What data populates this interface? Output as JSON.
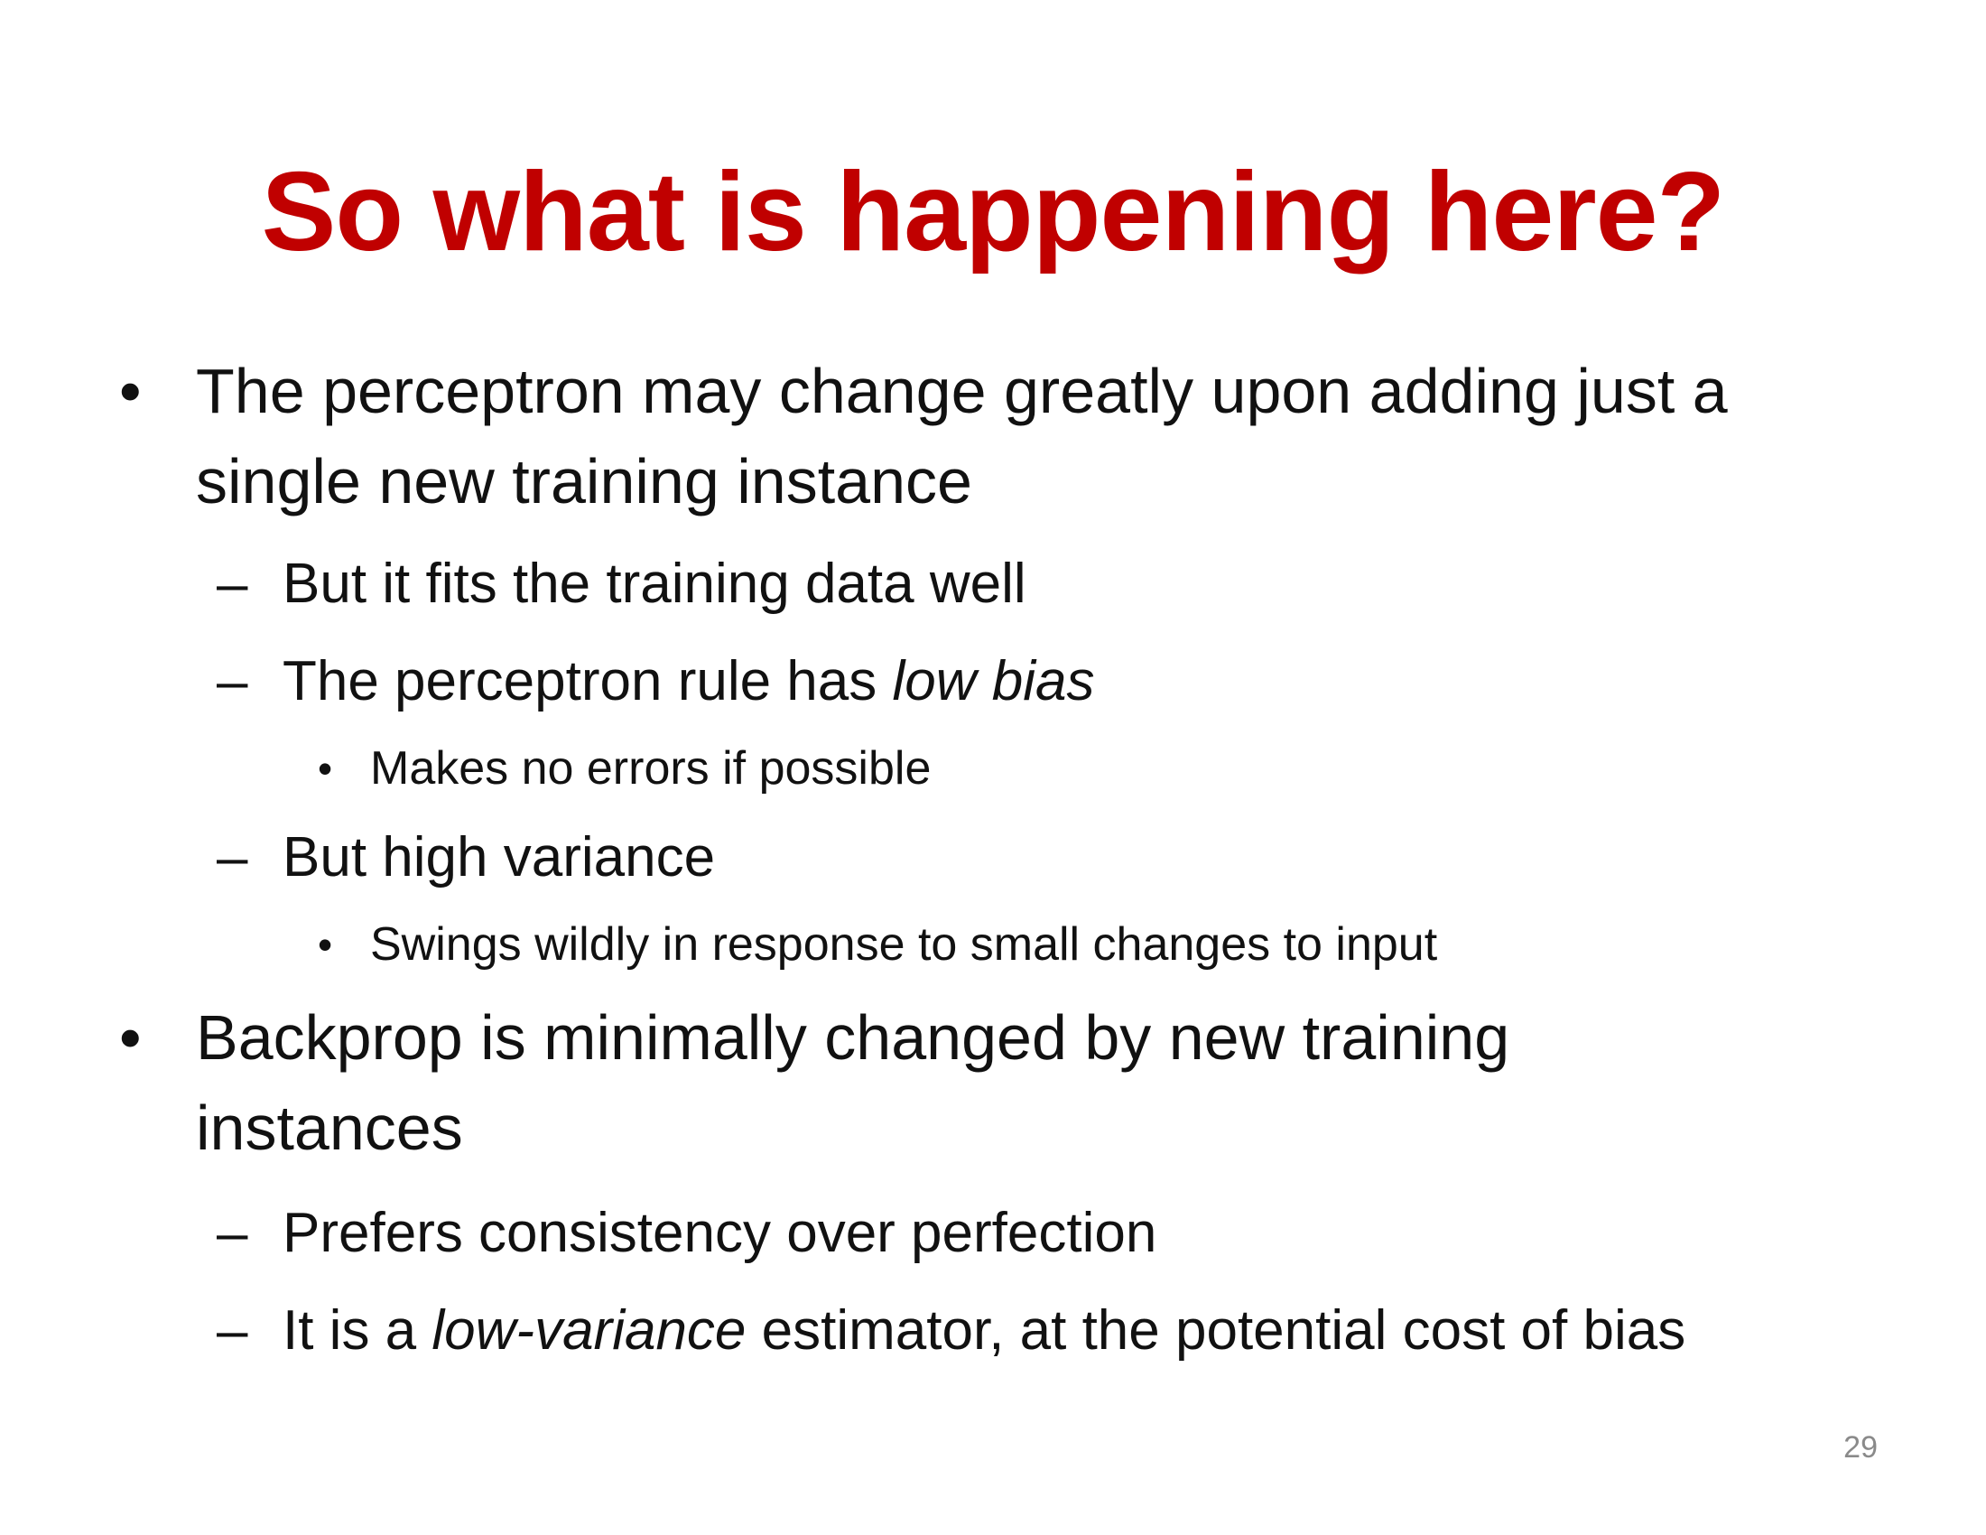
{
  "slide": {
    "title": "So what is happening here?",
    "page_number": "29",
    "markers": {
      "bullet": "•",
      "dash": "–"
    },
    "items": [
      {
        "level": 1,
        "lines": [
          "The perceptron may change greatly upon adding just a",
          "single new training instance"
        ]
      },
      {
        "level": 2,
        "parts": [
          "But it fits the training data well"
        ]
      },
      {
        "level": 2,
        "parts": [
          "The perceptron rule has ",
          "low bias",
          ""
        ]
      },
      {
        "level": 3,
        "parts": [
          "Makes no errors if possible"
        ]
      },
      {
        "level": 2,
        "parts": [
          "But high variance"
        ]
      },
      {
        "level": 3,
        "parts": [
          "Swings wildly in response to small changes to input"
        ]
      },
      {
        "level": 1,
        "lines": [
          "Backprop is minimally changed by new training",
          "instances"
        ]
      },
      {
        "level": 2,
        "parts": [
          "Prefers consistency over perfection"
        ]
      },
      {
        "level": 2,
        "parts": [
          "It is a ",
          "low-variance",
          " estimator, at the potential cost of bias"
        ]
      }
    ]
  }
}
